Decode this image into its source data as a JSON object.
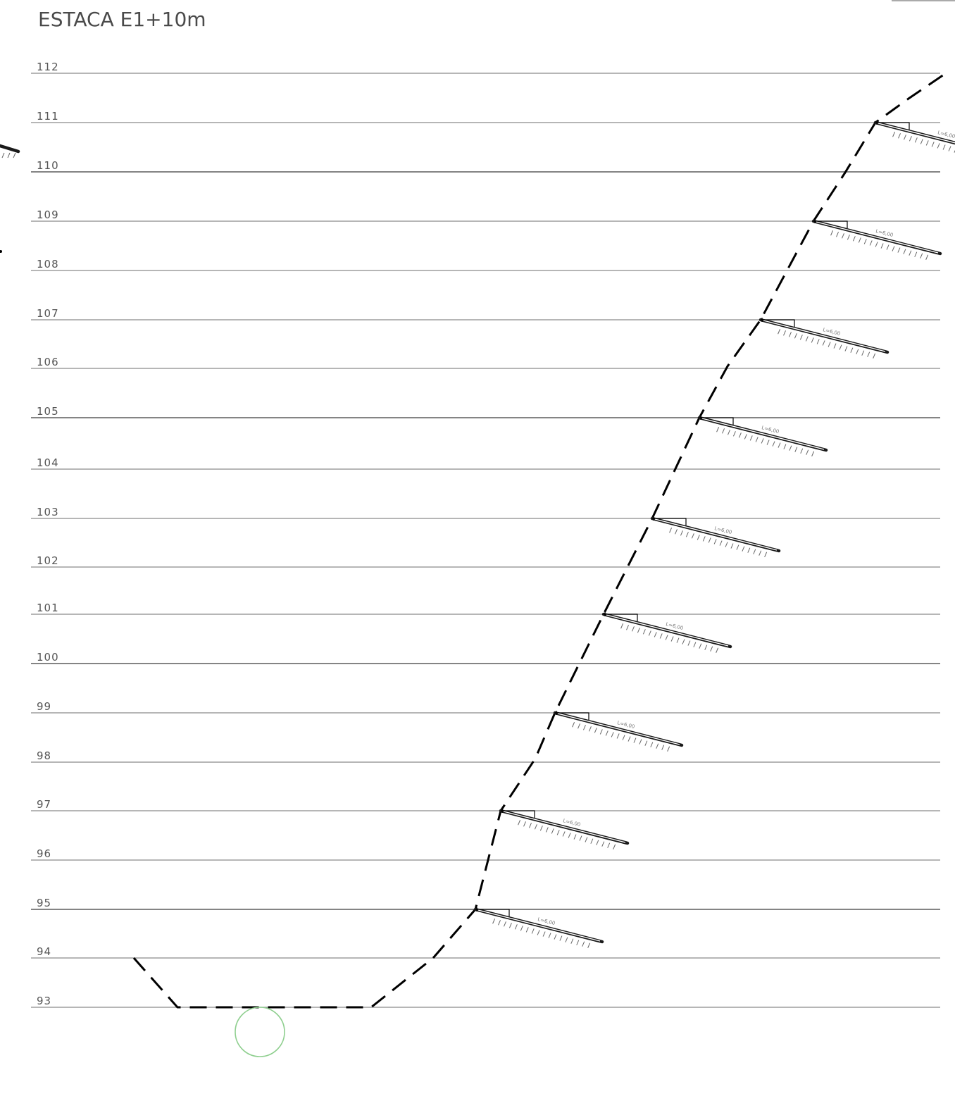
{
  "title": "ESTACA E1+10m",
  "elevation_labels": [
    "112",
    "111",
    "110",
    "109",
    "108",
    "107",
    "106",
    "105",
    "104",
    "103",
    "102",
    "101",
    "100",
    "99",
    "98",
    "97",
    "96",
    "95",
    "94",
    "93"
  ],
  "anchor_label": "L=6,00",
  "anchor_count": 9,
  "colors": {
    "profile": "#000000",
    "grid": "#8a8a8a",
    "marker": "#8fcf8f"
  }
}
